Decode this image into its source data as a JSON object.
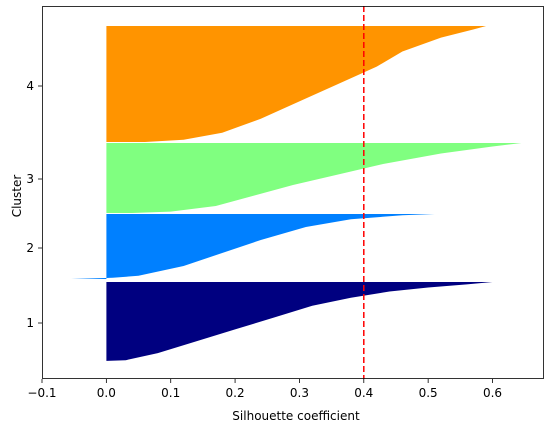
{
  "chart_data": {
    "type": "bar",
    "orientation": "horizontal",
    "xlabel": "Silhouette coefficient",
    "ylabel": "Cluster",
    "xlim": [
      -0.1,
      0.68
    ],
    "xticks": [
      -0.1,
      0.0,
      0.1,
      0.2,
      0.3,
      0.4,
      0.5,
      0.6
    ],
    "xtick_labels": [
      "−0.1",
      "0.0",
      "0.1",
      "0.2",
      "0.3",
      "0.4",
      "0.5",
      "0.6"
    ],
    "cluster_labels": [
      "1",
      "2",
      "3",
      "4"
    ],
    "reference_line": {
      "x": 0.4,
      "style": "dashed",
      "color": "#ff0000"
    },
    "series": [
      {
        "cluster": "1",
        "color": "#000080",
        "samples_fraction": [
          0.0,
          0.01,
          0.1,
          0.25,
          0.4,
          0.55,
          0.7,
          0.8,
          0.88,
          0.93,
          0.97,
          1.0
        ],
        "coefficients": [
          -0.005,
          0.03,
          0.08,
          0.14,
          0.2,
          0.26,
          0.32,
          0.38,
          0.44,
          0.5,
          0.56,
          0.6
        ]
      },
      {
        "cluster": "2",
        "color": "#0080ff",
        "samples_fraction": [
          0.0,
          0.02,
          0.05,
          0.2,
          0.4,
          0.6,
          0.8,
          0.92,
          0.98,
          1.0
        ],
        "coefficients": [
          -0.055,
          0.01,
          0.05,
          0.12,
          0.18,
          0.24,
          0.31,
          0.38,
          0.46,
          0.51
        ],
        "negative_tail": true
      },
      {
        "cluster": "3",
        "color": "#80ff80",
        "samples_fraction": [
          0.0,
          0.02,
          0.1,
          0.25,
          0.4,
          0.55,
          0.7,
          0.85,
          0.95,
          1.0
        ],
        "coefficients": [
          0.04,
          0.1,
          0.17,
          0.23,
          0.29,
          0.36,
          0.43,
          0.52,
          0.6,
          0.645
        ]
      },
      {
        "cluster": "4",
        "color": "#ff9400",
        "samples_fraction": [
          0.0,
          0.02,
          0.08,
          0.2,
          0.35,
          0.5,
          0.65,
          0.78,
          0.9,
          0.97,
          1.0
        ],
        "coefficients": [
          0.06,
          0.12,
          0.18,
          0.24,
          0.3,
          0.36,
          0.42,
          0.46,
          0.52,
          0.57,
          0.59
        ]
      }
    ],
    "grid": false
  }
}
